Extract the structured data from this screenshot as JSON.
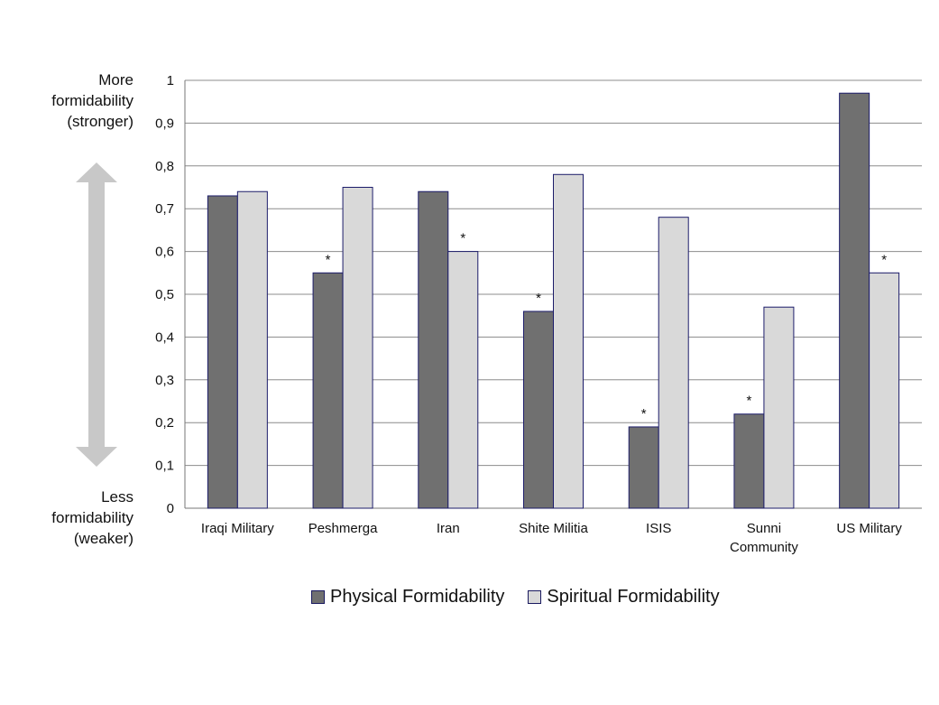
{
  "side_labels": {
    "top": [
      "More",
      "formidability",
      "(stronger)"
    ],
    "bottom": [
      "Less",
      "formidability",
      "(weaker)"
    ]
  },
  "colors": {
    "physical": "#707070",
    "spiritual": "#d9d9d9",
    "bar_border": "#1c1c6a",
    "grid": "#8c8c8c",
    "arrow": "#c8c8c8"
  },
  "chart_data": {
    "type": "bar",
    "categories": [
      [
        "Iraqi Military"
      ],
      [
        "Peshmerga"
      ],
      [
        "Iran"
      ],
      [
        "Shite Militia"
      ],
      [
        "ISIS"
      ],
      [
        "Sunni",
        "Community"
      ],
      [
        "US Military"
      ]
    ],
    "series": [
      {
        "name": "Physical Formidability",
        "values": [
          0.73,
          0.55,
          0.74,
          0.46,
          0.19,
          0.22,
          0.97
        ],
        "stars": [
          false,
          true,
          false,
          true,
          true,
          true,
          false
        ]
      },
      {
        "name": "Spiritual Formidability",
        "values": [
          0.74,
          0.75,
          0.6,
          0.78,
          0.68,
          0.47,
          0.55
        ],
        "stars": [
          false,
          false,
          true,
          false,
          false,
          false,
          true
        ]
      }
    ],
    "ylim": [
      0,
      1
    ],
    "yticks": [
      "0",
      "0,1",
      "0,2",
      "0,3",
      "0,4",
      "0,5",
      "0,6",
      "0,7",
      "0,8",
      "0,9",
      "1"
    ],
    "star_symbol": "*",
    "grid": true,
    "legend_position": "bottom"
  }
}
